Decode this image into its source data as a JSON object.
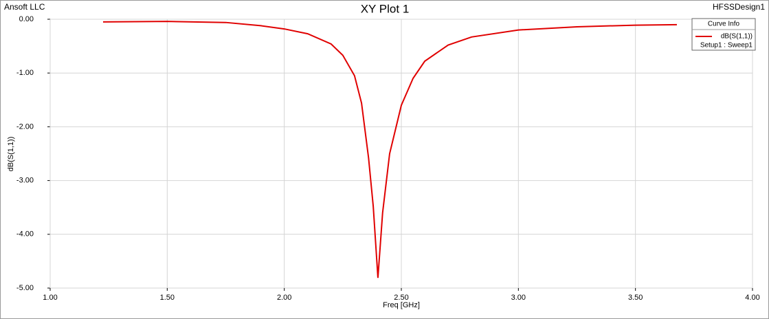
{
  "chart_data": {
    "type": "line",
    "title": "XY Plot 1",
    "company": "Ansoft LLC",
    "design": "HFSSDesign1",
    "legend_title": "Curve Info",
    "legend_subtitle": "Setup1 : Sweep1",
    "x_label": "Freq [GHz]",
    "y_label": "dB(S(1,1))",
    "grid": true,
    "legend": "upper right",
    "xlim": [
      1,
      4
    ],
    "xticks": [
      {
        "value": 1,
        "label": "1.00"
      },
      {
        "value": 1.5,
        "label": "1.50"
      },
      {
        "value": 2,
        "label": "2.00"
      },
      {
        "value": 2.5,
        "label": "2.50"
      },
      {
        "value": 3,
        "label": "3.00"
      },
      {
        "value": 3.5,
        "label": "3.50"
      },
      {
        "value": 4,
        "label": "4.00"
      }
    ],
    "ylim": [
      -5,
      0
    ],
    "yticks": [
      {
        "value": 0,
        "label": "0.00"
      },
      {
        "value": -1,
        "label": "-1.00"
      },
      {
        "value": -2,
        "label": "-2.00"
      },
      {
        "value": -3,
        "label": "-3.00"
      },
      {
        "value": -4,
        "label": "-4.00"
      },
      {
        "value": -5,
        "label": "-5.00"
      }
    ],
    "x": [
      1.226,
      1.5,
      1.75,
      1.9,
      2.0,
      2.1,
      2.2,
      2.25,
      2.3,
      2.33,
      2.36,
      2.38,
      2.4,
      2.42,
      2.45,
      2.5,
      2.55,
      2.6,
      2.7,
      2.8,
      3.0,
      3.25,
      3.5,
      3.677
    ],
    "series": [
      {
        "name": "dB(S(1,1))",
        "color": "#e00000",
        "values": [
          -0.05,
          -0.04,
          -0.06,
          -0.12,
          -0.18,
          -0.27,
          -0.46,
          -0.67,
          -1.05,
          -1.56,
          -2.58,
          -3.48,
          -4.81,
          -3.6,
          -2.5,
          -1.6,
          -1.1,
          -0.78,
          -0.48,
          -0.33,
          -0.2,
          -0.14,
          -0.11,
          -0.1
        ]
      }
    ]
  }
}
